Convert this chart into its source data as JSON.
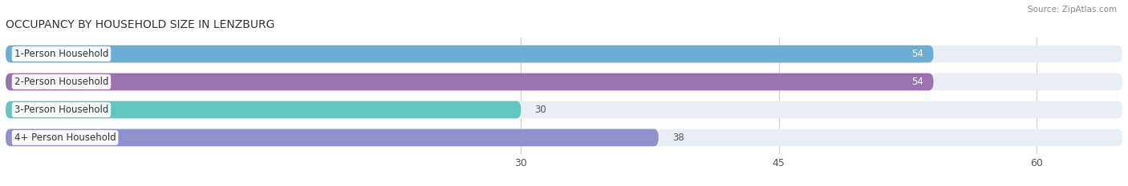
{
  "title": "OCCUPANCY BY HOUSEHOLD SIZE IN LENZBURG",
  "source": "Source: ZipAtlas.com",
  "categories": [
    "1-Person Household",
    "2-Person Household",
    "3-Person Household",
    "4+ Person Household"
  ],
  "values": [
    54,
    54,
    30,
    38
  ],
  "bar_colors": [
    "#6aaed6",
    "#9b72b0",
    "#5ec8c0",
    "#9090cc"
  ],
  "background_color": "#ffffff",
  "bar_bg_color": "#e8eef4",
  "xlim": [
    0,
    65
  ],
  "xticks": [
    30,
    45,
    60
  ],
  "label_fontsize": 8.5,
  "value_fontsize": 8.5,
  "title_fontsize": 10,
  "bar_height": 0.62,
  "bar_gap": 1.0
}
